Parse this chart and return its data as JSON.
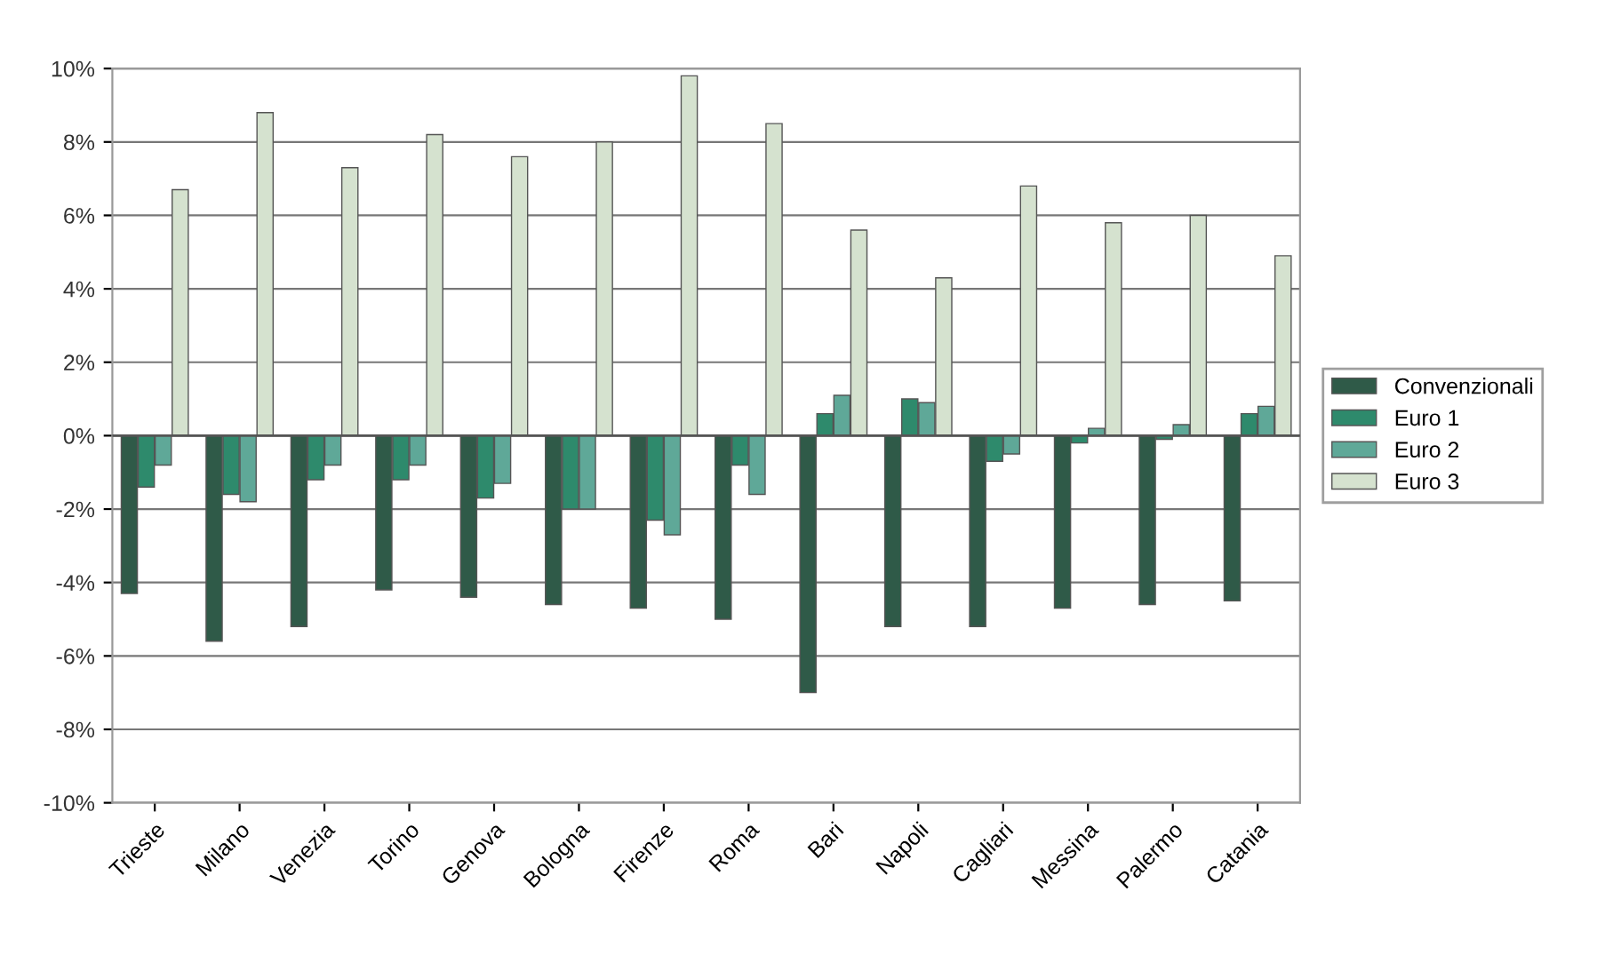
{
  "chart_data": {
    "type": "bar",
    "categories": [
      "Trieste",
      "Milano",
      "Venezia",
      "Torino",
      "Genova",
      "Bologna",
      "Firenze",
      "Roma",
      "Bari",
      "Napoli",
      "Cagliari",
      "Messina",
      "Palermo",
      "Catania"
    ],
    "series": [
      {
        "name": "Convenzionali",
        "color": "#2f5a48",
        "values": [
          -4.3,
          -5.6,
          -5.2,
          -4.2,
          -4.4,
          -4.6,
          -4.7,
          -5.0,
          -7.0,
          -5.2,
          -5.2,
          -4.7,
          -4.6,
          -4.5
        ]
      },
      {
        "name": "Euro 1",
        "color": "#2e8a6c",
        "values": [
          -1.4,
          -1.6,
          -1.2,
          -1.2,
          -1.7,
          -2.0,
          -2.3,
          -0.8,
          0.6,
          1.0,
          -0.7,
          -0.2,
          -0.1,
          0.6
        ]
      },
      {
        "name": "Euro 2",
        "color": "#5fa898",
        "values": [
          -0.8,
          -1.8,
          -0.8,
          -0.8,
          -1.3,
          -2.0,
          -2.7,
          -1.6,
          1.1,
          0.9,
          -0.5,
          0.2,
          0.3,
          0.8
        ]
      },
      {
        "name": "Euro 3",
        "color": "#d5e2cf",
        "values": [
          6.7,
          8.8,
          7.3,
          8.2,
          7.6,
          8.0,
          9.8,
          8.5,
          5.6,
          4.3,
          6.8,
          5.8,
          6.0,
          4.9
        ]
      }
    ],
    "ylim": [
      -10,
      10
    ],
    "yticks": [
      {
        "value": -10,
        "label": "-10%"
      },
      {
        "value": -8,
        "label": "-8%"
      },
      {
        "value": -6,
        "label": "-6%"
      },
      {
        "value": -4,
        "label": "-4%"
      },
      {
        "value": -2,
        "label": "-2%"
      },
      {
        "value": 0,
        "label": "0%"
      },
      {
        "value": 2,
        "label": "2%"
      },
      {
        "value": 4,
        "label": "4%"
      },
      {
        "value": 6,
        "label": "6%"
      },
      {
        "value": 8,
        "label": "8%"
      },
      {
        "value": 10,
        "label": "10%"
      }
    ],
    "grid": "y",
    "legend": "right"
  }
}
